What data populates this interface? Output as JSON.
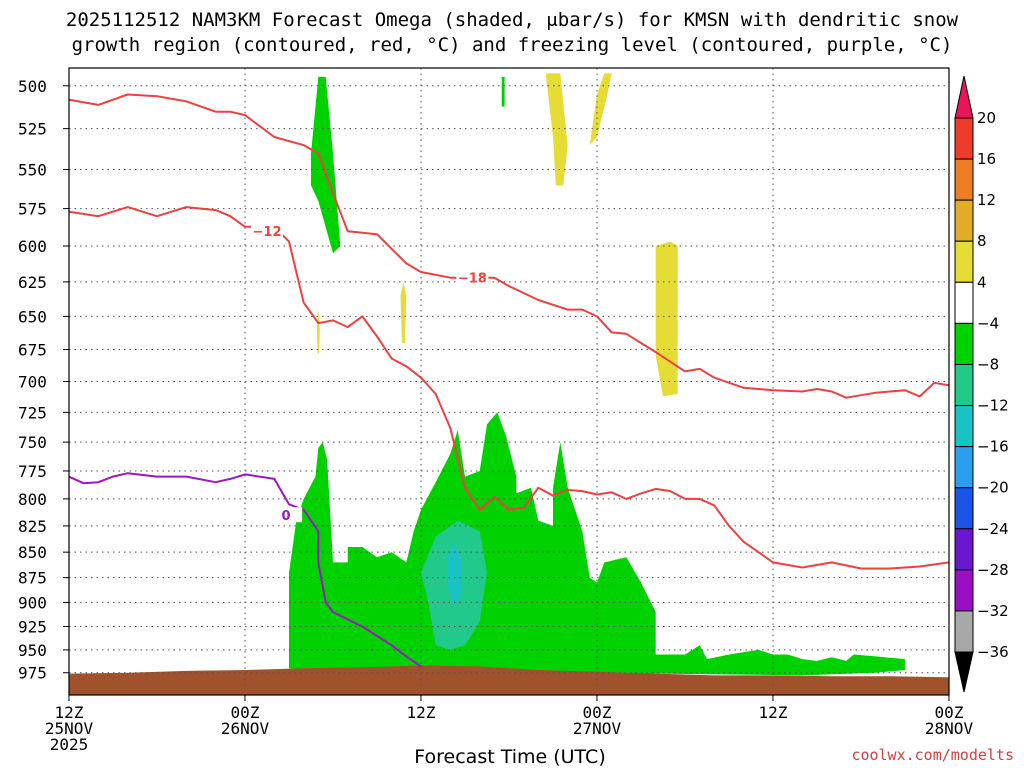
{
  "title_line1": "2025112512 NAM3KM Forecast Omega (shaded, μbar/s) for KMSN with dendritic snow",
  "title_line2": "growth region (contoured, red, °C) and freezing level (contoured, purple, °C)",
  "credit": "coolwx.com/modelts",
  "chart_data": {
    "type": "heatmap",
    "xlabel": "Forecast Time (UTC)",
    "x_ticks": [
      {
        "hour": 0,
        "l1": "12Z",
        "l2": "25NOV",
        "l3": "2025"
      },
      {
        "hour": 12,
        "l1": "00Z",
        "l2": "26NOV",
        "l3": ""
      },
      {
        "hour": 24,
        "l1": "12Z",
        "l2": "",
        "l3": ""
      },
      {
        "hour": 36,
        "l1": "00Z",
        "l2": "27NOV",
        "l3": ""
      },
      {
        "hour": 48,
        "l1": "12Z",
        "l2": "",
        "l3": ""
      },
      {
        "hour": 60,
        "l1": "00Z",
        "l2": "28NOV",
        "l3": ""
      }
    ],
    "x_range_hours": [
      0,
      60
    ],
    "y_ticks": [
      500,
      525,
      550,
      575,
      600,
      625,
      650,
      675,
      700,
      725,
      750,
      775,
      800,
      825,
      850,
      875,
      900,
      925,
      950,
      975
    ],
    "y_range_hpa": [
      490,
      1000
    ],
    "y_scale": "log-pressure",
    "grid": true,
    "colorbar": {
      "labels": [
        "20",
        "16",
        "12",
        "8",
        "4",
        "−4",
        "−8",
        "−12",
        "−16",
        "−20",
        "−24",
        "−28",
        "−32",
        "−36"
      ],
      "colors": [
        "#e8155a",
        "#ef3b2c",
        "#ef7d23",
        "#e2ab28",
        "#e5dc35",
        "#ffffff",
        "#00d200",
        "#21c98a",
        "#19c3c3",
        "#2a9ff0",
        "#1c54e6",
        "#6a18cf",
        "#9b0fc4",
        "#a8a8a8",
        "#000000"
      ]
    },
    "contours": [
      {
        "level": -12,
        "color": "#ee4040",
        "label": "−12",
        "label_hour": 13.5,
        "label_hpa": 590,
        "points": [
          [
            0,
            577
          ],
          [
            2,
            580
          ],
          [
            4,
            574
          ],
          [
            6,
            580
          ],
          [
            8,
            574
          ],
          [
            10,
            576
          ],
          [
            11,
            580
          ],
          [
            12,
            587
          ],
          [
            14,
            587
          ],
          [
            15,
            597
          ],
          [
            16,
            640
          ],
          [
            17,
            655
          ],
          [
            18,
            653
          ],
          [
            19,
            658
          ],
          [
            20,
            650
          ],
          [
            21,
            665
          ],
          [
            22,
            682
          ],
          [
            23,
            688
          ],
          [
            24,
            697
          ],
          [
            25,
            710
          ],
          [
            26,
            738
          ],
          [
            27,
            790
          ],
          [
            28,
            810
          ],
          [
            29,
            798
          ],
          [
            30,
            810
          ],
          [
            31,
            808
          ],
          [
            32,
            790
          ],
          [
            33,
            797
          ],
          [
            34,
            792
          ],
          [
            35,
            793
          ],
          [
            36,
            796
          ],
          [
            37,
            794
          ],
          [
            38,
            800
          ],
          [
            39,
            795
          ],
          [
            40,
            791
          ],
          [
            41,
            793
          ],
          [
            42,
            800
          ],
          [
            43,
            800
          ],
          [
            44,
            806
          ],
          [
            45,
            825
          ],
          [
            46,
            840
          ],
          [
            48,
            860
          ],
          [
            50,
            865
          ],
          [
            52,
            860
          ],
          [
            54,
            866
          ],
          [
            56,
            866
          ],
          [
            58,
            864
          ],
          [
            60,
            860
          ]
        ]
      },
      {
        "level": -18,
        "color": "#ee4040",
        "label": "−18",
        "label_hour": 27.5,
        "label_hpa": 622,
        "points": [
          [
            0,
            508
          ],
          [
            2,
            511
          ],
          [
            3,
            508
          ],
          [
            4,
            505
          ],
          [
            6,
            506
          ],
          [
            8,
            509
          ],
          [
            10,
            515
          ],
          [
            11,
            515
          ],
          [
            12,
            517
          ],
          [
            14,
            530
          ],
          [
            16,
            535
          ],
          [
            17,
            540
          ],
          [
            18,
            565
          ],
          [
            19,
            590
          ],
          [
            21,
            592
          ],
          [
            22,
            602
          ],
          [
            23,
            612
          ],
          [
            24,
            618
          ],
          [
            25,
            620
          ],
          [
            26,
            622
          ],
          [
            27,
            622
          ],
          [
            29,
            622
          ],
          [
            30,
            628
          ],
          [
            32,
            638
          ],
          [
            34,
            645
          ],
          [
            35,
            645
          ],
          [
            36,
            650
          ],
          [
            37,
            662
          ],
          [
            38,
            663
          ],
          [
            39,
            670
          ],
          [
            40,
            677
          ],
          [
            42,
            692
          ],
          [
            43,
            690
          ],
          [
            44,
            697
          ],
          [
            46,
            705
          ],
          [
            48,
            707
          ],
          [
            50,
            708
          ],
          [
            51,
            706
          ],
          [
            52,
            708
          ],
          [
            53,
            713
          ],
          [
            55,
            709
          ],
          [
            57,
            707
          ],
          [
            58,
            712
          ],
          [
            59,
            701
          ],
          [
            60,
            703
          ]
        ]
      },
      {
        "level": 0,
        "color": "#9a18c0",
        "label": "0",
        "label_hour": 14.8,
        "label_hpa": 815,
        "points": [
          [
            0,
            780
          ],
          [
            1,
            786
          ],
          [
            2,
            785
          ],
          [
            3,
            780
          ],
          [
            4,
            777
          ],
          [
            6,
            780
          ],
          [
            8,
            780
          ],
          [
            10,
            785
          ],
          [
            11,
            782
          ],
          [
            12,
            778
          ],
          [
            13,
            780
          ],
          [
            14,
            782
          ],
          [
            15,
            805
          ],
          [
            16,
            810
          ],
          [
            17,
            830
          ],
          [
            17,
            860
          ],
          [
            17.5,
            900
          ],
          [
            18,
            910
          ],
          [
            20,
            925
          ],
          [
            21,
            935
          ],
          [
            22,
            945
          ],
          [
            23,
            957
          ],
          [
            24,
            968
          ]
        ]
      }
    ],
    "omega_regions": [
      {
        "value": "-4 to -8",
        "color": "#00d200",
        "points": [
          [
            17,
            975
          ],
          [
            15,
            970
          ],
          [
            15,
            900
          ],
          [
            15,
            870
          ],
          [
            15.5,
            820
          ],
          [
            16,
            800
          ],
          [
            16.8,
            780
          ],
          [
            17,
            755
          ],
          [
            17.3,
            750
          ],
          [
            17.6,
            765
          ],
          [
            18,
            860
          ],
          [
            19,
            860
          ],
          [
            19,
            845
          ],
          [
            20,
            845
          ],
          [
            21,
            855
          ],
          [
            22,
            850
          ],
          [
            23,
            860
          ],
          [
            23.5,
            830
          ],
          [
            24,
            810
          ],
          [
            25,
            785
          ],
          [
            26,
            760
          ],
          [
            26.5,
            740
          ],
          [
            27,
            780
          ],
          [
            28,
            775
          ],
          [
            28.5,
            735
          ],
          [
            29.2,
            725
          ],
          [
            29.8,
            745
          ],
          [
            30.5,
            780
          ],
          [
            30.5,
            795
          ],
          [
            31.5,
            790
          ],
          [
            32,
            820
          ],
          [
            33,
            825
          ],
          [
            33,
            790
          ],
          [
            33.5,
            750
          ],
          [
            34,
            790
          ],
          [
            35,
            830
          ],
          [
            35.5,
            875
          ],
          [
            36,
            880
          ],
          [
            36.5,
            860
          ],
          [
            38,
            855
          ],
          [
            39,
            880
          ],
          [
            40,
            910
          ],
          [
            40,
            955
          ],
          [
            42,
            955
          ],
          [
            43,
            945
          ],
          [
            43.5,
            960
          ],
          [
            45,
            955
          ],
          [
            47,
            950
          ],
          [
            48,
            955
          ],
          [
            49,
            955
          ],
          [
            50,
            960
          ],
          [
            51,
            962
          ],
          [
            52,
            958
          ],
          [
            53,
            962
          ],
          [
            53.5,
            955
          ],
          [
            55,
            957
          ],
          [
            57,
            960
          ],
          [
            57,
            972
          ],
          [
            55,
            975
          ],
          [
            50,
            978
          ],
          [
            45,
            977
          ],
          [
            40,
            976
          ],
          [
            35,
            975
          ],
          [
            30,
            975
          ],
          [
            25,
            970
          ],
          [
            20,
            975
          ]
        ]
      },
      {
        "value": "-8 to -12",
        "color": "#21c98a",
        "points": [
          [
            24,
            870
          ],
          [
            25,
            835
          ],
          [
            26.5,
            820
          ],
          [
            28,
            830
          ],
          [
            28.5,
            870
          ],
          [
            28,
            920
          ],
          [
            27,
            945
          ],
          [
            26,
            950
          ],
          [
            25,
            945
          ],
          [
            24.5,
            900
          ]
        ]
      },
      {
        "value": "-12 to -16",
        "color": "#19c3c3",
        "points": [
          [
            25.8,
            855
          ],
          [
            26.3,
            840
          ],
          [
            26.8,
            860
          ],
          [
            26.7,
            895
          ],
          [
            26.2,
            905
          ],
          [
            25.8,
            880
          ]
        ]
      },
      {
        "value": "-4 to -8",
        "color": "#00d200",
        "points": [
          [
            17,
            495
          ],
          [
            17.5,
            495
          ],
          [
            18,
            540
          ],
          [
            18.5,
            600
          ],
          [
            18,
            605
          ],
          [
            17,
            570
          ],
          [
            16.5,
            560
          ],
          [
            16.5,
            540
          ]
        ]
      },
      {
        "value": "-4 to -8",
        "color": "#00d200",
        "points": [
          [
            29.5,
            495
          ],
          [
            29.7,
            495
          ],
          [
            29.7,
            512
          ],
          [
            29.5,
            512
          ]
        ]
      },
      {
        "value": "4 to 8",
        "color": "#e5dc35",
        "points": [
          [
            32.5,
            493
          ],
          [
            33.5,
            493
          ],
          [
            34,
            535
          ],
          [
            33.7,
            560
          ],
          [
            33.2,
            560
          ],
          [
            33,
            530
          ]
        ]
      },
      {
        "value": "4 to 8",
        "color": "#e5dc35",
        "points": [
          [
            35.5,
            535
          ],
          [
            36,
            505
          ],
          [
            36.5,
            493
          ],
          [
            37,
            493
          ],
          [
            36.7,
            505
          ],
          [
            36,
            530
          ]
        ]
      },
      {
        "value": "4 to 8",
        "color": "#e5dc35",
        "points": [
          [
            40,
            600
          ],
          [
            41,
            597
          ],
          [
            41.5,
            600
          ],
          [
            41.5,
            710
          ],
          [
            40.5,
            712
          ],
          [
            40,
            680
          ]
        ]
      },
      {
        "value": "4 to 8",
        "color": "#e5dc35",
        "points": [
          [
            22.6,
            635
          ],
          [
            22.8,
            625
          ],
          [
            23,
            635
          ],
          [
            22.9,
            670
          ],
          [
            22.7,
            670
          ]
        ]
      },
      {
        "value": "4 to 8",
        "color": "#e5dc35",
        "points": [
          [
            16.9,
            660
          ],
          [
            17,
            645
          ],
          [
            17.1,
            660
          ],
          [
            17.05,
            678
          ],
          [
            16.95,
            678
          ]
        ]
      }
    ],
    "terrain": {
      "color": "#a0522d",
      "points": [
        [
          0,
          976
        ],
        [
          4,
          975
        ],
        [
          8,
          973
        ],
        [
          12,
          972
        ],
        [
          16,
          970
        ],
        [
          20,
          969
        ],
        [
          24,
          967
        ],
        [
          28,
          968
        ],
        [
          32,
          972
        ],
        [
          36,
          974
        ],
        [
          40,
          976
        ],
        [
          44,
          978
        ],
        [
          48,
          978
        ],
        [
          52,
          979
        ],
        [
          56,
          979
        ],
        [
          60,
          980
        ]
      ]
    }
  },
  "ui": {}
}
